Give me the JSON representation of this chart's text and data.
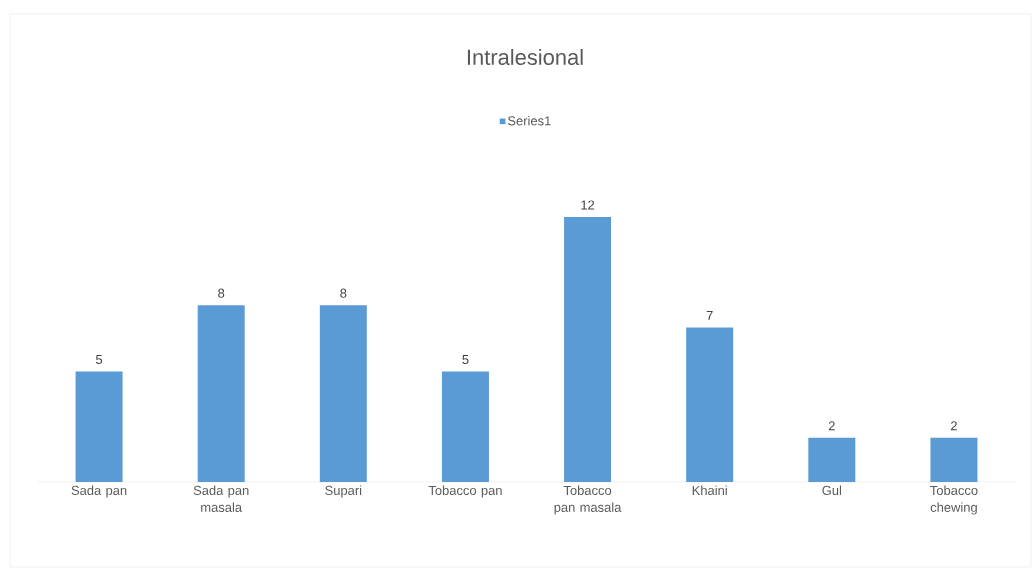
{
  "chart_data": {
    "type": "bar",
    "title": "Intralesional",
    "categories": [
      "Sada pan",
      "Sada pan masala",
      "Supari",
      "Tobacco pan",
      "Tobacco pan masala",
      "Khaini",
      "Gul",
      "Tobacco chewing"
    ],
    "series": [
      {
        "name": "Series1",
        "color": "#5b9bd5",
        "values": [
          5,
          8,
          8,
          5,
          12,
          7,
          2,
          2
        ]
      }
    ],
    "data_labels": true,
    "legend": "top"
  }
}
